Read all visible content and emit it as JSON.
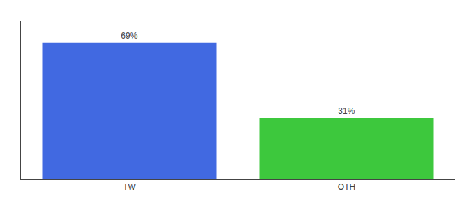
{
  "chart_data": {
    "type": "bar",
    "categories": [
      "TW",
      "OTH"
    ],
    "values": [
      69,
      31
    ],
    "value_labels": [
      "69%",
      "31%"
    ],
    "colors": [
      "#4169e1",
      "#3dc83d"
    ],
    "ylim": [
      0,
      80
    ],
    "grid": false,
    "data_labels": true,
    "tick_labels": "x"
  }
}
